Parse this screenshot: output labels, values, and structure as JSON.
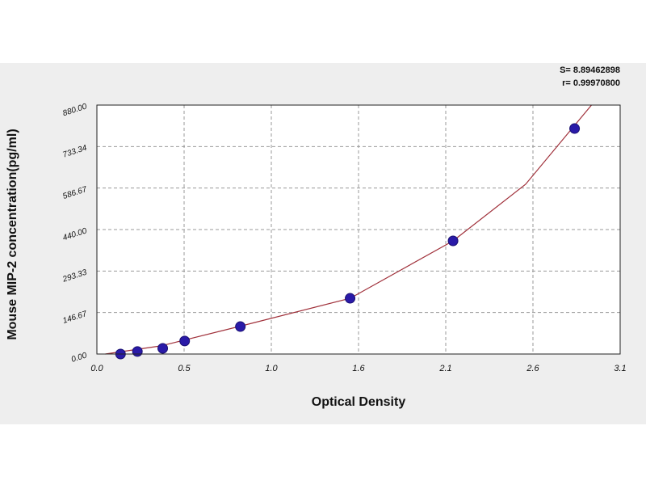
{
  "chart_data": {
    "type": "scatter",
    "annotations": [
      "S= 8.89462898",
      "r= 0.99970800"
    ],
    "x_label": "Optical Density",
    "y_label": "Mouse MIP-2 concentration(pg/ml)",
    "x": [
      0.14,
      0.24,
      0.39,
      0.52,
      0.85,
      1.5,
      2.11,
      2.83
    ],
    "series": [
      {
        "color": "#2a1aa8",
        "values": [
          0,
          9,
          20,
          46,
          97,
          197,
          400,
          797
        ]
      }
    ],
    "fit": {
      "color": "#a0303a",
      "x": [
        0.05,
        0.38,
        0.86,
        1.5,
        2.11,
        2.54,
        2.93
      ],
      "values": [
        0,
        29,
        100,
        197,
        400,
        600,
        880
      ]
    },
    "xlim": [
      0,
      3.1
    ],
    "ylim": [
      0,
      880
    ],
    "xticks": [
      {
        "value": 0,
        "label": "0.0"
      },
      {
        "value": 0.5167,
        "label": "0.5"
      },
      {
        "value": 1.0333,
        "label": "1.0"
      },
      {
        "value": 1.55,
        "label": "1.6"
      },
      {
        "value": 2.0667,
        "label": "2.1"
      },
      {
        "value": 2.5833,
        "label": "2.6"
      },
      3.1
    ],
    "yticks": [
      {
        "value": 0,
        "label": "0.00"
      },
      146.67,
      293.33,
      {
        "value": 440,
        "label": "440.00"
      },
      586.67,
      733.34,
      {
        "value": 880,
        "label": "880.00"
      }
    ],
    "grid": true
  }
}
